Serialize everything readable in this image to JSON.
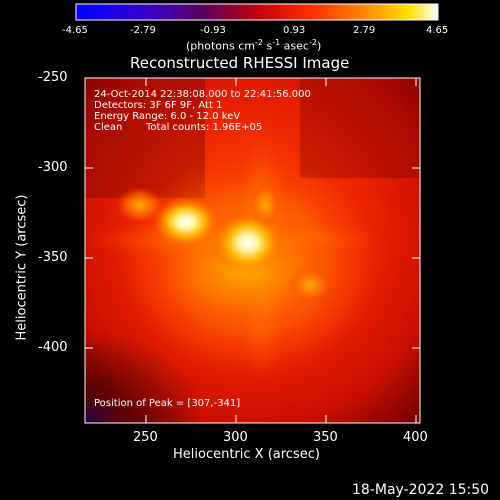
{
  "colorbar": {
    "ticks": [
      "-4.65",
      "-2.79",
      "-0.93",
      "0.93",
      "2.79",
      "4.65"
    ],
    "units_prefix": "(photons cm",
    "units_exp1": "-2",
    "units_mid": " s",
    "units_exp2": "-1",
    "units_mid2": " asec",
    "units_exp3": "-2",
    "units_suffix": ")"
  },
  "title": "Reconstructed RHESSI Image",
  "header": {
    "time_range": "24-Oct-2014 22:38:08.000 to 22:41:56.000",
    "detectors": "Detectors: 3F 6F 9F, Att 1",
    "energy": "Energy Range: 6.0 - 12.0 keV",
    "method": "Clean",
    "counts": "Total counts: 1.96E+05"
  },
  "peak_label": "Position of Peak = [307,-341]",
  "x_axis": {
    "label": "Heliocentric X (arcsec)",
    "ticks": [
      "250",
      "300",
      "350",
      "400"
    ]
  },
  "y_axis": {
    "label": "Heliocentric Y (arcsec)",
    "ticks": [
      "-250",
      "-300",
      "-350",
      "-400"
    ]
  },
  "timestamp": "18-May-2022 15:50",
  "colors": {
    "background": "#000000",
    "map_dark": "#8a0000",
    "map_mid": "#ff3000",
    "map_hot": "#ffd400",
    "map_peak": "#fffde0"
  }
}
